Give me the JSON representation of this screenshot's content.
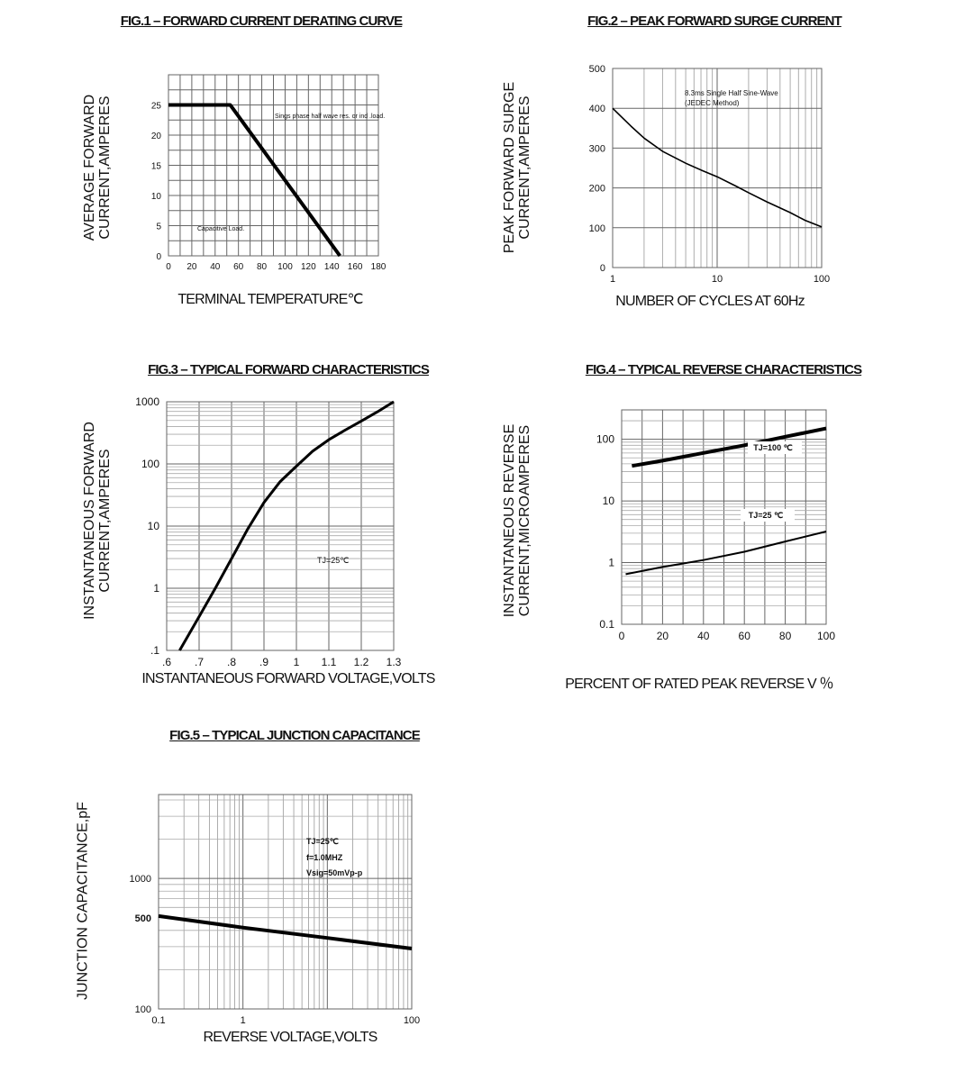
{
  "chart_data": [
    {
      "type": "line",
      "title": "FIG.1 – FORWARD CURRENT DERATING CURVE",
      "xlabel": "TERMINAL  TEMPERATURE℃",
      "ylabel": [
        "AVERAGE FORWARD",
        "CURRENT,AMPERES"
      ],
      "xscale": "linear",
      "yscale": "linear",
      "xlim": [
        0,
        180
      ],
      "ylim": [
        0,
        30
      ],
      "grid": true,
      "xticks": [
        0,
        20,
        40,
        60,
        80,
        100,
        120,
        140,
        160,
        180
      ],
      "xtick_labels": [
        "0",
        "20",
        "40",
        "60",
        "80",
        "100",
        "120",
        "140",
        "160",
        "180"
      ],
      "yticks": [
        0,
        5,
        10,
        15,
        20,
        25
      ],
      "ytick_labels": [
        "0",
        "5",
        "10",
        "15",
        "20",
        "25"
      ],
      "annotations": [
        "Sings phase half wave res. or ind .load.",
        "Capacitive Load."
      ],
      "series": [
        {
          "x": [
            0,
            53,
            147
          ],
          "y": [
            25,
            25,
            0
          ]
        }
      ],
      "line_color": "#000000"
    },
    {
      "type": "line",
      "title": "FIG.2 – PEAK FORWARD SURGE CURRENT",
      "xlabel": "NUMBER  OF  CYCLES AT 60Hz",
      "ylabel": [
        "PEAK FORWARD SURGE",
        "CURRENT,AMPERES"
      ],
      "xscale": "log",
      "yscale": "linear",
      "xlim": [
        1,
        100
      ],
      "ylim": [
        0,
        500
      ],
      "grid": true,
      "xticks": [
        1,
        10,
        100
      ],
      "xtick_labels": [
        "1",
        "10",
        "100"
      ],
      "yticks": [
        0,
        100,
        200,
        300,
        400,
        500
      ],
      "ytick_labels": [
        "0",
        "100",
        "200",
        "300",
        "400",
        "500"
      ],
      "annotations": [
        "8.3ms Single Half Sine-Wave",
        "(JEDEC Method)"
      ],
      "series": [
        {
          "x": [
            1,
            1.5,
            2,
            3,
            5,
            7,
            10,
            15,
            20,
            30,
            50,
            70,
            100
          ],
          "y": [
            400,
            355,
            325,
            292,
            262,
            245,
            228,
            205,
            188,
            165,
            138,
            118,
            102
          ]
        }
      ],
      "line_color": "#000000"
    },
    {
      "type": "line",
      "title": "FIG.3 – TYPICAL FORWARD CHARACTERISTICS",
      "xlabel": "INSTANTANEOUS FORWARD VOLTAGE,VOLTS",
      "ylabel": [
        "INSTANTANEOUS FORWARD",
        "CURRENT,AMPERES"
      ],
      "xscale": "linear",
      "yscale": "log",
      "xlim": [
        0.6,
        1.3
      ],
      "ylim": [
        0.1,
        1000
      ],
      "grid": true,
      "xticks": [
        0.6,
        0.7,
        0.8,
        0.9,
        1.0,
        1.1,
        1.2,
        1.3
      ],
      "xtick_labels": [
        ".6",
        ".7",
        ".8",
        ".9",
        "1",
        "1.1",
        "1.2",
        "1.3"
      ],
      "yticks": [
        0.1,
        1,
        10,
        100,
        1000
      ],
      "ytick_labels": [
        ".1",
        "1",
        "10",
        "100",
        "1000"
      ],
      "annotations": [
        "TJ=25℃"
      ],
      "series": [
        {
          "x": [
            0.64,
            0.7,
            0.75,
            0.8,
            0.85,
            0.9,
            0.95,
            1.0,
            1.05,
            1.1,
            1.15,
            1.2,
            1.25,
            1.3
          ],
          "y": [
            0.1,
            0.35,
            1,
            3,
            9,
            24,
            52,
            92,
            160,
            245,
            350,
            490,
            690,
            1000
          ]
        }
      ],
      "line_color": "#000000"
    },
    {
      "type": "line",
      "title": "FIG.4 – TYPICAL REVERSE  CHARACTERISTICS",
      "xlabel": "PERCENT  OF  RATED PEAK REVERSE V  ％",
      "ylabel": [
        "INSTANTANEOUS REVERSE",
        "CURRENT,MICROAMPERES"
      ],
      "xscale": "linear",
      "yscale": "log",
      "xlim": [
        0,
        100
      ],
      "ylim": [
        0.1,
        300
      ],
      "grid": true,
      "xticks": [
        0,
        20,
        40,
        60,
        80,
        100
      ],
      "xtick_labels": [
        "0",
        "20",
        "40",
        "60",
        "80",
        "100"
      ],
      "yticks": [
        0.1,
        1,
        10,
        100
      ],
      "ytick_labels": [
        "0.1",
        "1",
        "10",
        "100"
      ],
      "series": [
        {
          "name": "TJ=100 ℃",
          "x": [
            5,
            20,
            40,
            60,
            80,
            100
          ],
          "y": [
            37,
            45,
            60,
            80,
            110,
            150
          ]
        },
        {
          "name": "TJ=25 ℃",
          "x": [
            2,
            20,
            40,
            60,
            80,
            100
          ],
          "y": [
            0.65,
            0.85,
            1.1,
            1.5,
            2.2,
            3.2
          ]
        }
      ],
      "line_color": "#000000"
    },
    {
      "type": "line",
      "title": "FIG.5 – TYPICAL JUNCTION CAPACITANCE",
      "xlabel": "REVERSE VOLTAGE,VOLTS",
      "ylabel": [
        "JUNCTION CAPACITANCE,pF"
      ],
      "xscale": "log",
      "yscale": "log",
      "xlim": [
        0.1,
        100
      ],
      "ylim": [
        100,
        4400
      ],
      "grid": true,
      "xticks": [
        0.1,
        1,
        100
      ],
      "xtick_labels": [
        "0.1",
        "1",
        "100"
      ],
      "yticks": [
        100,
        500,
        1000
      ],
      "ytick_labels": [
        "100",
        "500",
        "1000"
      ],
      "annotations": [
        "TJ=25℃",
        "f=1.0MHZ",
        "Vsig=50mVp-p"
      ],
      "series": [
        {
          "x": [
            0.1,
            1,
            10,
            100
          ],
          "y": [
            515,
            420,
            350,
            290
          ]
        }
      ],
      "line_color": "#000000"
    }
  ]
}
